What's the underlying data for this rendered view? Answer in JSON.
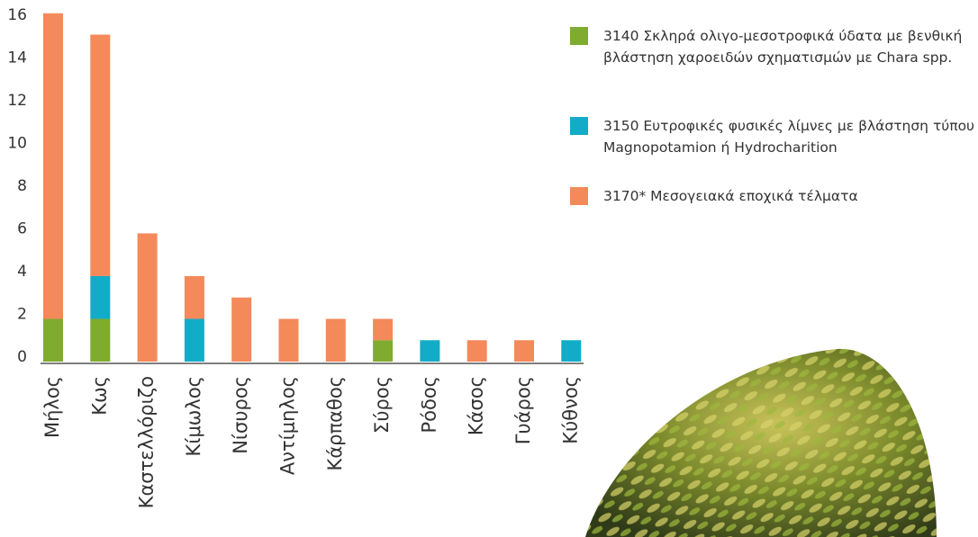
{
  "chart_data": {
    "type": "bar",
    "stacked": true,
    "categories": [
      "Μήλος",
      "Κως",
      "Καστελλόριζο",
      "Κίμωλος",
      "Νίσυρος",
      "Αντίμηλος",
      "Κάρπαθος",
      "Σύρος",
      "Ρόδος",
      "Κάσος",
      "Γυάρος",
      "Κύθνος"
    ],
    "series": [
      {
        "name": "3140 Σκληρά ολιγο-μεσοτροφικά ύδατα με βενθική βλάστηση χαροειδών σχηματισμών με Chara spp.",
        "color": "#7fab2e",
        "values": [
          2,
          2,
          0,
          0,
          0,
          0,
          0,
          1,
          0,
          0,
          0,
          0
        ]
      },
      {
        "name": "3150 Ευτροφικές φυσικές λίμνες με βλάστηση τύπου Magnopotamion ή Hydrocharition",
        "color": "#12acc9",
        "values": [
          0,
          2,
          0,
          2,
          0,
          0,
          0,
          0,
          1,
          0,
          0,
          1
        ]
      },
      {
        "name": "3170* Μεσογειακά εποχικά τέλματα",
        "color": "#f4895a",
        "values": [
          14.3,
          11.3,
          6,
          2,
          3,
          2,
          2,
          1,
          0,
          1,
          1,
          0
        ]
      }
    ],
    "ylim": [
      0,
      16.5
    ],
    "yticks": [
      0,
      2,
      4,
      6,
      8,
      10,
      12,
      14,
      16
    ],
    "grid": false,
    "legend": "top-right"
  }
}
